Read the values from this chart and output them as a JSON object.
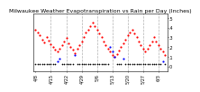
{
  "title": "Milwaukee Weather Evapotranspiration vs Rain per Day (Inches)",
  "background_color": "#ffffff",
  "plot_bg_color": "#ffffff",
  "grid_color": "#b0b0b0",
  "et_color": "#ff0000",
  "rain_color": "#0000ff",
  "black_color": "#000000",
  "ylim": [
    -0.05,
    0.55
  ],
  "xlim": [
    -1,
    60
  ],
  "et_values": [
    0.38,
    0.35,
    0.32,
    0.28,
    0.25,
    0.3,
    0.27,
    0.23,
    0.2,
    0.17,
    0.15,
    0.18,
    0.22,
    0.26,
    0.29,
    0.24,
    0.2,
    0.17,
    0.14,
    0.18,
    0.22,
    0.26,
    0.3,
    0.35,
    0.38,
    0.42,
    0.45,
    0.42,
    0.38,
    0.34,
    0.3,
    0.26,
    0.22,
    0.18,
    0.15,
    0.12,
    0.1,
    0.13,
    0.16,
    0.2,
    0.24,
    0.28,
    0.32,
    0.35,
    0.38,
    0.34,
    0.3,
    0.26,
    0.22,
    0.18,
    0.15,
    0.18,
    0.22,
    0.26,
    0.3,
    0.26,
    0.22,
    0.18,
    0.15,
    0.12
  ],
  "rain_values": [
    0.0,
    0.0,
    0.0,
    0.0,
    0.0,
    0.0,
    0.0,
    0.0,
    0.0,
    0.0,
    0.05,
    0.08,
    0.0,
    0.0,
    0.0,
    0.0,
    0.0,
    0.0,
    0.12,
    0.0,
    0.0,
    0.0,
    0.0,
    0.0,
    0.0,
    0.0,
    0.0,
    0.0,
    0.0,
    0.0,
    0.0,
    0.0,
    0.0,
    0.0,
    0.2,
    0.15,
    0.1,
    0.0,
    0.0,
    0.0,
    0.08,
    0.0,
    0.0,
    0.0,
    0.0,
    0.0,
    0.0,
    0.0,
    0.0,
    0.0,
    0.0,
    0.0,
    0.0,
    0.0,
    0.0,
    0.0,
    0.0,
    0.0,
    0.05,
    0.0
  ],
  "vline_positions": [
    7,
    14,
    21,
    28,
    35,
    42,
    49,
    56
  ],
  "xtick_positions": [
    0,
    7,
    14,
    21,
    28,
    35,
    42,
    49,
    56
  ],
  "xtick_labels": [
    "4/8",
    "4/15",
    "4/22",
    "4/29",
    "5/6",
    "5/13",
    "5/20",
    "5/27",
    "6/3"
  ],
  "ytick_positions": [
    0.0,
    0.1,
    0.2,
    0.3,
    0.4,
    0.5
  ],
  "ytick_labels": [
    "0",
    ".1",
    ".2",
    ".3",
    ".4",
    ".5"
  ],
  "marker_size": 2.5,
  "title_fontsize": 4.5,
  "tick_fontsize": 3.5
}
